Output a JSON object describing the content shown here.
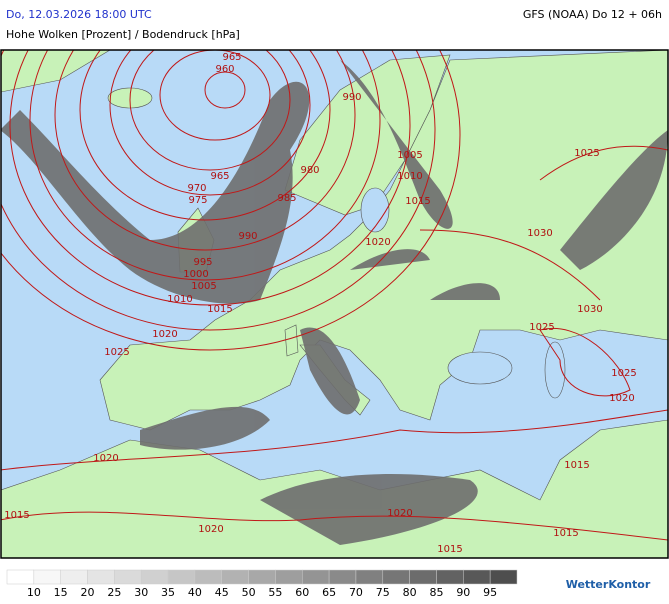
{
  "header": {
    "datetime": "Do, 12.03.2026 18:00 UTC",
    "model": "GFS (NOAA) Do 12 + 06h",
    "title": "Hohe Wolken [Prozent] / Bodendruck [hPa]"
  },
  "isobar_labels": [
    "965",
    "960",
    "990",
    "980",
    "965",
    "970",
    "975",
    "985",
    "1005",
    "1010",
    "1015",
    "990",
    "1020",
    "1030",
    "1025",
    "995",
    "1000",
    "1005",
    "1010",
    "1015",
    "1020",
    "1025",
    "1030",
    "1025",
    "1025",
    "1020",
    "1020",
    "1015",
    "1015",
    "1020",
    "1020",
    "1015",
    "1015"
  ],
  "legend": {
    "labels": [
      "10",
      "15",
      "20",
      "25",
      "30",
      "35",
      "40",
      "45",
      "50",
      "55",
      "60",
      "65",
      "70",
      "75",
      "80",
      "85",
      "90",
      "95"
    ],
    "colors": [
      "#ffffff",
      "#f7f7f7",
      "#eeeeee",
      "#e4e4e4",
      "#dadada",
      "#d0d0d0",
      "#c6c6c6",
      "#bcbcbc",
      "#b2b2b2",
      "#a8a8a8",
      "#9e9e9e",
      "#949494",
      "#8a8a8a",
      "#808080",
      "#767676",
      "#6c6c6c",
      "#626262",
      "#585858",
      "#4e4e4e"
    ]
  },
  "logo": "WetterKontor"
}
